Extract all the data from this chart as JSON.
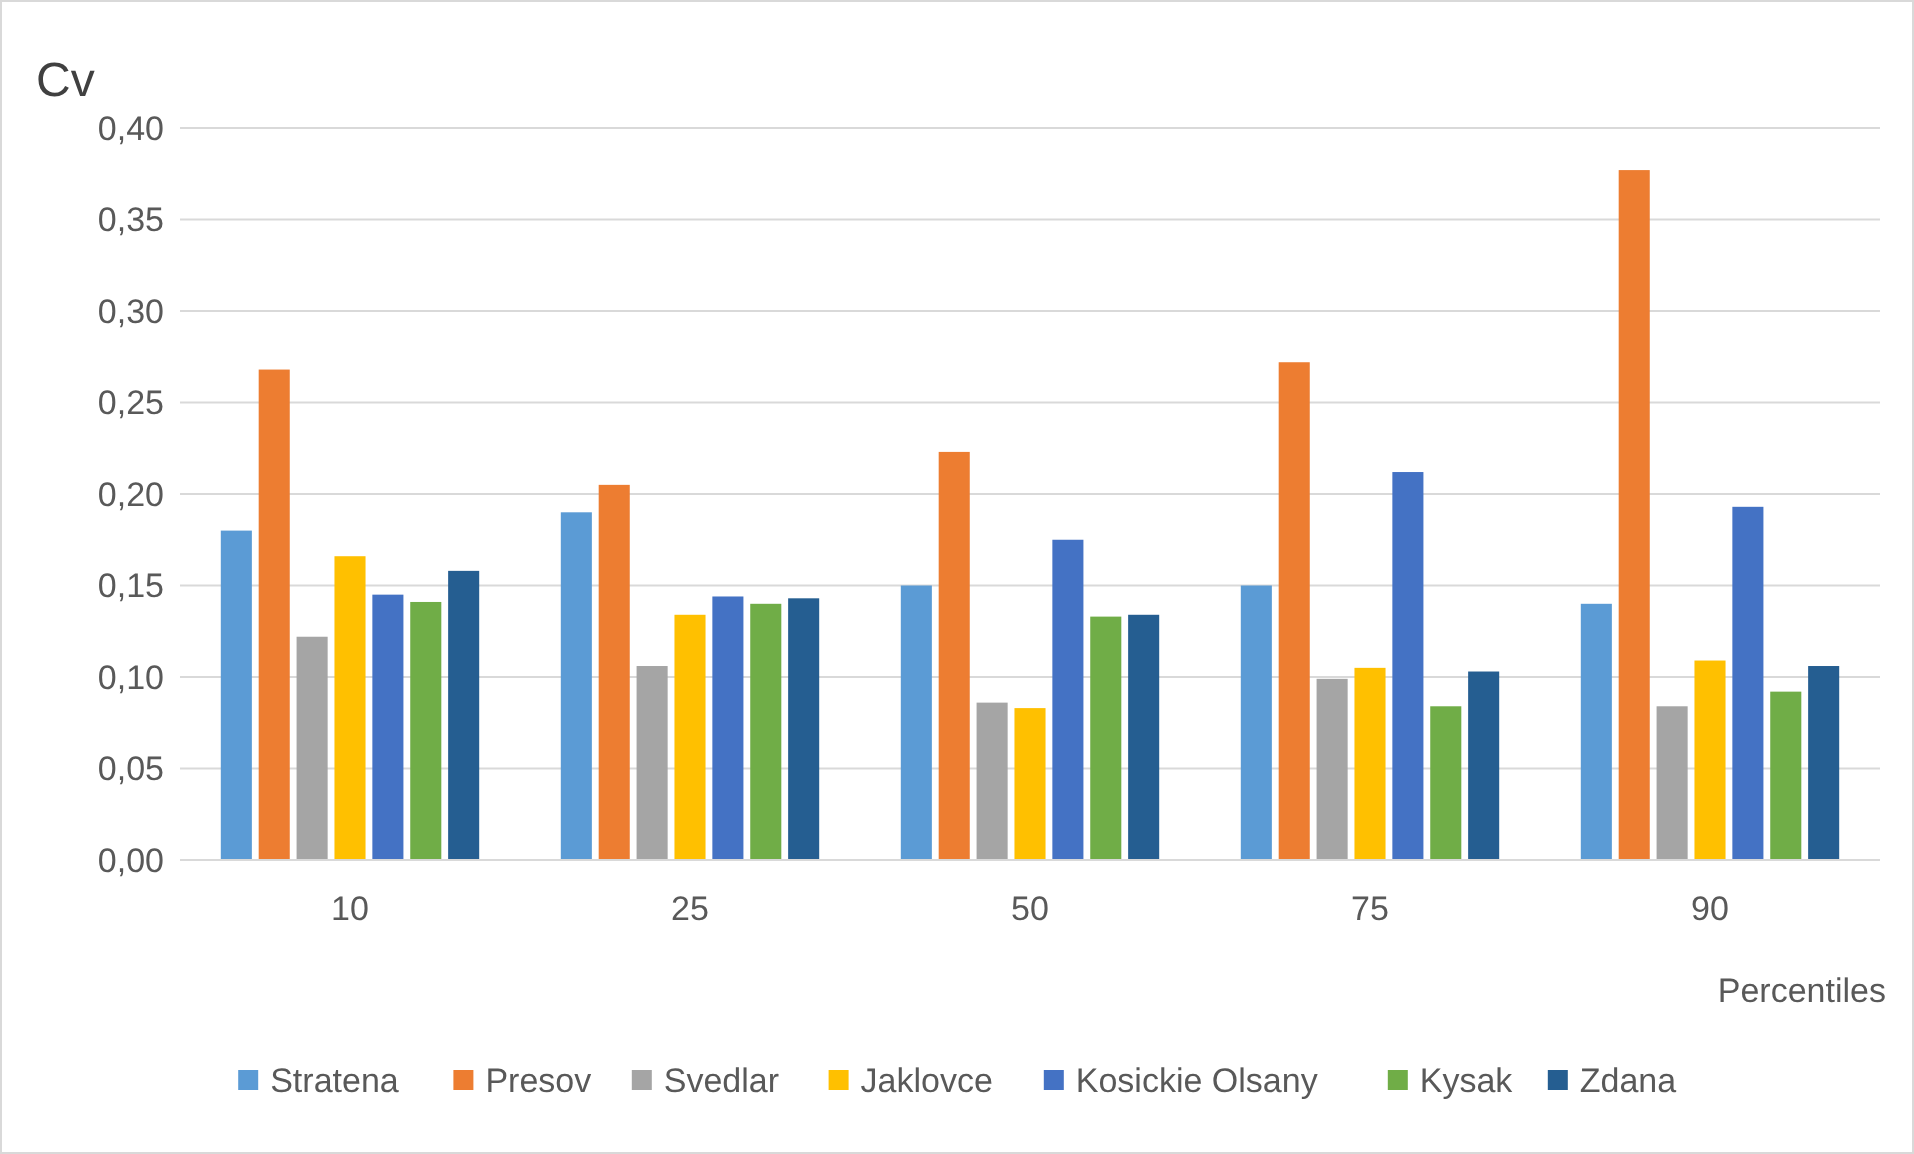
{
  "chart_data": {
    "type": "bar",
    "ylabel": "Cv",
    "xlabel": "Percentiles",
    "categories": [
      "10",
      "25",
      "50",
      "75",
      "90"
    ],
    "series": [
      {
        "name": "Stratena",
        "color": "#5b9bd5",
        "values": [
          0.18,
          0.19,
          0.15,
          0.15,
          0.14
        ]
      },
      {
        "name": "Presov",
        "color": "#ed7d31",
        "values": [
          0.268,
          0.205,
          0.223,
          0.272,
          0.377
        ]
      },
      {
        "name": "Svedlar",
        "color": "#a5a5a5",
        "values": [
          0.122,
          0.106,
          0.086,
          0.099,
          0.084
        ]
      },
      {
        "name": "Jaklovce",
        "color": "#ffc000",
        "values": [
          0.166,
          0.134,
          0.083,
          0.105,
          0.109
        ]
      },
      {
        "name": "Kosickie Olsany",
        "color": "#4472c4",
        "values": [
          0.145,
          0.144,
          0.175,
          0.212,
          0.193
        ]
      },
      {
        "name": "Kysak",
        "color": "#70ad47",
        "values": [
          0.141,
          0.14,
          0.133,
          0.084,
          0.092
        ]
      },
      {
        "name": "Zdana",
        "color": "#255e91",
        "values": [
          0.158,
          0.143,
          0.134,
          0.103,
          0.106
        ]
      }
    ],
    "ylim": [
      0,
      0.4
    ],
    "yticks": [
      {
        "value": 0,
        "label": "0,00"
      },
      {
        "value": 0.05,
        "label": "0,05"
      },
      {
        "value": 0.1,
        "label": "0,10"
      },
      {
        "value": 0.15,
        "label": "0,15"
      },
      {
        "value": 0.2,
        "label": "0,20"
      },
      {
        "value": 0.25,
        "label": "0,25"
      },
      {
        "value": 0.3,
        "label": "0,30"
      },
      {
        "value": 0.35,
        "label": "0,35"
      },
      {
        "value": 0.4,
        "label": "0,40"
      }
    ],
    "grid": "y",
    "legend": "bottom"
  }
}
